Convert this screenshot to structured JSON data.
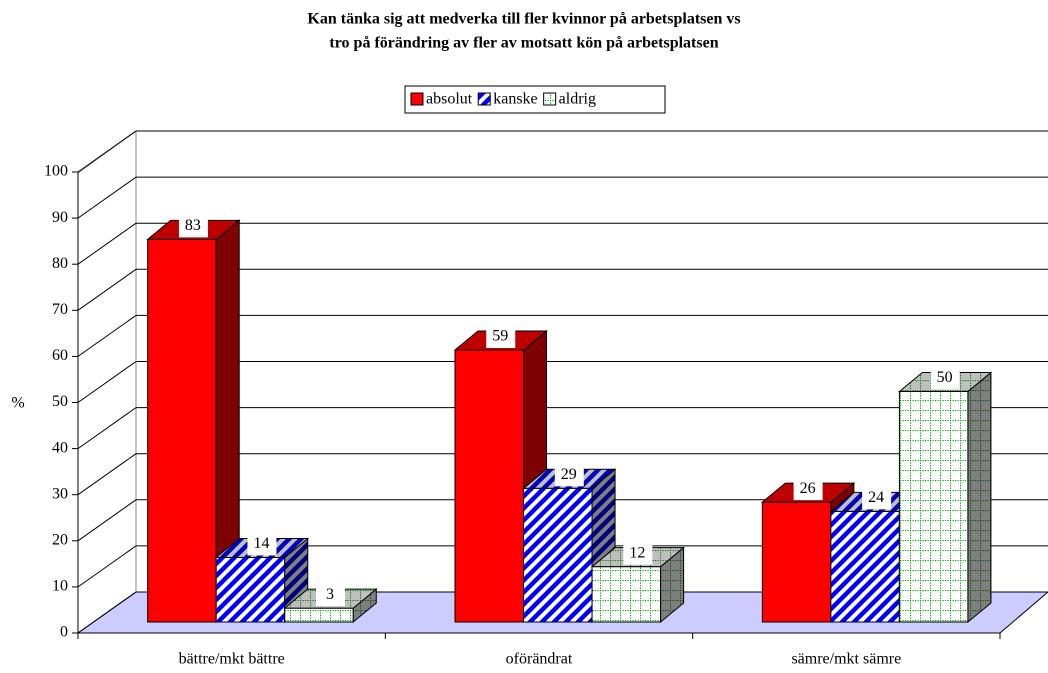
{
  "chart_data": {
    "type": "bar3d",
    "title": [
      "Kan tänka sig att medverka till fler kvinnor på arbetsplatsen vs",
      "tro på förändring av fler av motsatt kön på arbetsplatsen"
    ],
    "ylabel": "%",
    "categories": [
      "bättre/mkt bättre",
      "oförändrat",
      "sämre/mkt sämre"
    ],
    "series": [
      {
        "name": "absolut",
        "color": "#ff0000",
        "pattern": "solid",
        "values": [
          83,
          59,
          26
        ]
      },
      {
        "name": "kanske",
        "color": "#0000ff",
        "pattern": "diagonal",
        "values": [
          14,
          29,
          24
        ]
      },
      {
        "name": "aldrig",
        "color": "#00a000",
        "pattern": "dots",
        "values": [
          3,
          12,
          50
        ]
      }
    ],
    "ylim": [
      0,
      100
    ],
    "yticks": [
      0,
      10,
      20,
      30,
      40,
      50,
      60,
      70,
      80,
      90,
      100
    ],
    "grid": true,
    "legend": "top"
  }
}
